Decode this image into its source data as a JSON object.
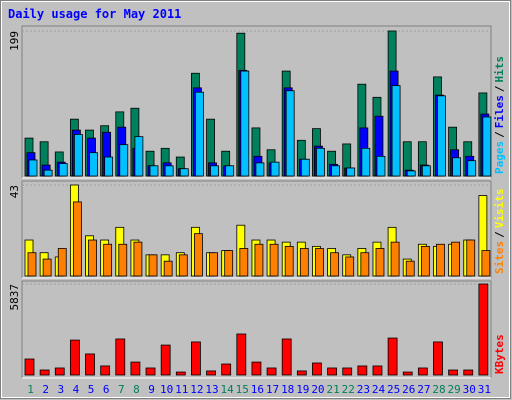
{
  "chart_data": [
    {
      "type": "bar",
      "title": "Daily usage for May 2011",
      "ylim": [
        0,
        199
      ],
      "yticks": [
        199
      ],
      "legend_separator": "/",
      "series": [
        {
          "name": "Hits",
          "color": "#00805c",
          "values": [
            52,
            47,
            33,
            78,
            63,
            69,
            88,
            93,
            34,
            38,
            26,
            141,
            78,
            34,
            196,
            66,
            36,
            144,
            49,
            65,
            34,
            44,
            126,
            108,
            199,
            47,
            47,
            136,
            67,
            47,
            114
          ]
        },
        {
          "name": "Files",
          "color": "#0000ff",
          "values": [
            32,
            15,
            19,
            63,
            52,
            60,
            67,
            38,
            14,
            18,
            10,
            121,
            18,
            14,
            145,
            27,
            18,
            121,
            23,
            41,
            16,
            11,
            66,
            82,
            144,
            8,
            15,
            111,
            36,
            27,
            85
          ]
        },
        {
          "name": "Pages",
          "color": "#00c0ff",
          "values": [
            22,
            8,
            17,
            57,
            32,
            26,
            43,
            54,
            14,
            14,
            10,
            115,
            14,
            14,
            144,
            18,
            19,
            117,
            23,
            38,
            14,
            11,
            38,
            27,
            124,
            7,
            14,
            110,
            25,
            21,
            81
          ]
        }
      ]
    },
    {
      "type": "bar",
      "ylim": [
        0,
        43
      ],
      "yticks": [
        43
      ],
      "legend_separator": "/",
      "series": [
        {
          "name": "Visits",
          "color": "#ffff00",
          "values": [
            17,
            11,
            9,
            43,
            19,
            17,
            23,
            17,
            10,
            10,
            11,
            23,
            11,
            12,
            24,
            17,
            17,
            16,
            16,
            14,
            13,
            10,
            13,
            16,
            23,
            8,
            15,
            14,
            15,
            17,
            38
          ]
        },
        {
          "name": "Sites",
          "color": "#ff8000",
          "values": [
            11,
            8,
            13,
            35,
            17,
            15,
            15,
            16,
            10,
            7,
            10,
            20,
            11,
            12,
            13,
            15,
            15,
            14,
            13,
            13,
            11,
            9,
            11,
            13,
            16,
            7,
            14,
            15,
            16,
            17,
            12
          ]
        }
      ]
    },
    {
      "type": "bar",
      "ylim": [
        0,
        5837
      ],
      "yticks": [
        5837
      ],
      "categories": [
        "1",
        "2",
        "3",
        "4",
        "5",
        "6",
        "7",
        "8",
        "9",
        "10",
        "11",
        "12",
        "13",
        "14",
        "15",
        "16",
        "17",
        "18",
        "19",
        "20",
        "21",
        "22",
        "23",
        "24",
        "25",
        "26",
        "27",
        "28",
        "29",
        "30",
        "31"
      ],
      "category_colors": [
        "#00805c",
        "#0000ff",
        "#0000ff",
        "#0000ff",
        "#0000ff",
        "#0000ff",
        "#00805c",
        "#00805c",
        "#0000ff",
        "#0000ff",
        "#0000ff",
        "#0000ff",
        "#0000ff",
        "#00805c",
        "#00805c",
        "#0000ff",
        "#0000ff",
        "#0000ff",
        "#0000ff",
        "#0000ff",
        "#00805c",
        "#00805c",
        "#0000ff",
        "#0000ff",
        "#0000ff",
        "#0000ff",
        "#0000ff",
        "#00805c",
        "#00805c",
        "#0000ff",
        "#0000ff"
      ],
      "series": [
        {
          "name": "KBytes",
          "color": "#ff0000",
          "values": [
            1026,
            320,
            450,
            2240,
            1350,
            580,
            2310,
            830,
            450,
            1920,
            190,
            2120,
            260,
            705,
            2630,
            830,
            450,
            2310,
            260,
            770,
            450,
            450,
            580,
            580,
            2370,
            190,
            450,
            2120,
            320,
            320,
            5837
          ]
        }
      ]
    }
  ]
}
